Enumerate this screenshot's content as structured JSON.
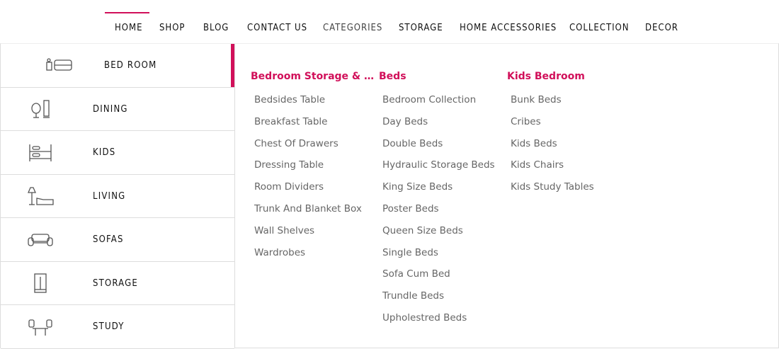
{
  "nav": {
    "items": [
      "HOME",
      "SHOP",
      "BLOG",
      "CONTACT US",
      "CATEGORIES",
      "STORAGE",
      "HOME ACCESSORIES",
      "COLLECTION",
      "DECOR"
    ],
    "active": "HOME"
  },
  "accent": "#d1105a",
  "sidebar": {
    "items": [
      {
        "label": "BED ROOM",
        "icon": "bed-icon"
      },
      {
        "label": "DINING",
        "icon": "mirror-chair-icon"
      },
      {
        "label": "KIDS",
        "icon": "bunk-bed-icon"
      },
      {
        "label": "LIVING",
        "icon": "lamp-chaise-icon"
      },
      {
        "label": "SOFAS",
        "icon": "sofa-icon"
      },
      {
        "label": "STORAGE",
        "icon": "wardrobe-icon"
      },
      {
        "label": "STUDY",
        "icon": "desk-chairs-icon"
      }
    ],
    "active": "BED ROOM"
  },
  "columns": [
    {
      "title": "Bedroom Storage & A...",
      "items": [
        "Bedsides Table",
        "Breakfast Table",
        "Chest Of Drawers",
        "Dressing Table",
        "Room Dividers",
        "Trunk And Blanket Box",
        "Wall Shelves",
        "Wardrobes"
      ]
    },
    {
      "title": "Beds",
      "items": [
        "Bedroom Collection",
        "Day Beds",
        "Double Beds",
        "Hydraulic Storage Beds",
        "King Size Beds",
        "Poster Beds",
        "Queen Size Beds",
        "Single Beds",
        "Sofa Cum Bed",
        "Trundle Beds",
        "Upholestred Beds"
      ]
    },
    {
      "title": "Kids Bedroom",
      "items": [
        "Bunk Beds",
        "Cribes",
        "Kids Beds",
        "Kids Chairs",
        "Kids Study Tables"
      ]
    }
  ]
}
